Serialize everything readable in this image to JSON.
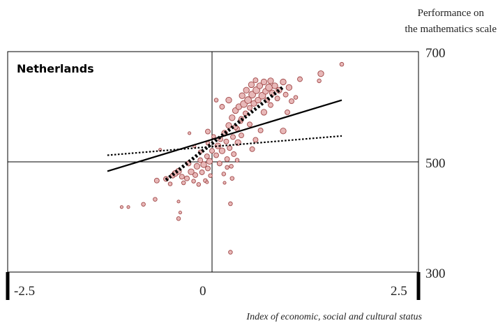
{
  "chart_data": {
    "type": "scatter",
    "title": "Netherlands",
    "ylabel": [
      "Performance on",
      "the mathematics scale"
    ],
    "xlabel": "Index of economic, social and cultural status",
    "xlim": [
      -2.5,
      2.5
    ],
    "ylim": [
      300,
      700
    ],
    "x_ticks": [
      "-2.5",
      "0",
      "2.5"
    ],
    "y_ticks": [
      "700",
      "500",
      "300"
    ],
    "reference_lines": {
      "x": 0,
      "y": 500
    },
    "points": [
      {
        "x": -1.08,
        "y": 418,
        "s": 3
      },
      {
        "x": -1.0,
        "y": 418,
        "s": 3
      },
      {
        "x": -0.82,
        "y": 423,
        "s": 4
      },
      {
        "x": -0.68,
        "y": 432,
        "s": 4
      },
      {
        "x": -0.66,
        "y": 466,
        "s": 5
      },
      {
        "x": -0.62,
        "y": 522,
        "s": 3
      },
      {
        "x": -0.55,
        "y": 469,
        "s": 5
      },
      {
        "x": -0.5,
        "y": 460,
        "s": 4
      },
      {
        "x": -0.47,
        "y": 475,
        "s": 5
      },
      {
        "x": -0.44,
        "y": 479,
        "s": 6
      },
      {
        "x": -0.4,
        "y": 483,
        "s": 6
      },
      {
        "x": -0.36,
        "y": 473,
        "s": 5
      },
      {
        "x": -0.34,
        "y": 462,
        "s": 4
      },
      {
        "x": -0.3,
        "y": 470,
        "s": 5
      },
      {
        "x": -0.28,
        "y": 497,
        "s": 5
      },
      {
        "x": -0.25,
        "y": 482,
        "s": 6
      },
      {
        "x": -0.22,
        "y": 465,
        "s": 4
      },
      {
        "x": -0.2,
        "y": 476,
        "s": 5
      },
      {
        "x": -0.18,
        "y": 492,
        "s": 6
      },
      {
        "x": -0.16,
        "y": 459,
        "s": 4
      },
      {
        "x": -0.14,
        "y": 503,
        "s": 5
      },
      {
        "x": -0.12,
        "y": 481,
        "s": 5
      },
      {
        "x": -0.1,
        "y": 495,
        "s": 6
      },
      {
        "x": -0.08,
        "y": 466,
        "s": 4
      },
      {
        "x": -0.06,
        "y": 510,
        "s": 5
      },
      {
        "x": -0.05,
        "y": 488,
        "s": 5
      },
      {
        "x": -0.03,
        "y": 501,
        "s": 6
      },
      {
        "x": -0.02,
        "y": 475,
        "s": 4
      },
      {
        "x": 0.0,
        "y": 520,
        "s": 5
      },
      {
        "x": -0.4,
        "y": 428,
        "s": 3
      },
      {
        "x": -0.38,
        "y": 408,
        "s": 3
      },
      {
        "x": -0.4,
        "y": 397,
        "s": 4
      },
      {
        "x": -0.27,
        "y": 552,
        "s": 3
      },
      {
        "x": -0.21,
        "y": 528,
        "s": 3
      },
      {
        "x": -0.14,
        "y": 518,
        "s": 4
      },
      {
        "x": -0.05,
        "y": 534,
        "s": 4
      },
      {
        "x": -0.05,
        "y": 555,
        "s": 5
      },
      {
        "x": 0.02,
        "y": 546,
        "s": 4
      },
      {
        "x": 0.05,
        "y": 512,
        "s": 5
      },
      {
        "x": 0.07,
        "y": 529,
        "s": 6
      },
      {
        "x": 0.09,
        "y": 497,
        "s": 5
      },
      {
        "x": 0.1,
        "y": 541,
        "s": 5
      },
      {
        "x": 0.12,
        "y": 520,
        "s": 6
      },
      {
        "x": 0.14,
        "y": 478,
        "s": 4
      },
      {
        "x": 0.15,
        "y": 552,
        "s": 6
      },
      {
        "x": 0.17,
        "y": 537,
        "s": 5
      },
      {
        "x": 0.18,
        "y": 505,
        "s": 5
      },
      {
        "x": 0.2,
        "y": 566,
        "s": 6
      },
      {
        "x": 0.21,
        "y": 525,
        "s": 5
      },
      {
        "x": 0.23,
        "y": 492,
        "s": 4
      },
      {
        "x": 0.24,
        "y": 580,
        "s": 6
      },
      {
        "x": 0.25,
        "y": 545,
        "s": 5
      },
      {
        "x": 0.26,
        "y": 514,
        "s": 5
      },
      {
        "x": 0.28,
        "y": 593,
        "s": 6
      },
      {
        "x": 0.3,
        "y": 560,
        "s": 5
      },
      {
        "x": 0.31,
        "y": 535,
        "s": 6
      },
      {
        "x": 0.32,
        "y": 600,
        "s": 6
      },
      {
        "x": 0.34,
        "y": 574,
        "s": 5
      },
      {
        "x": 0.35,
        "y": 548,
        "s": 5
      },
      {
        "x": 0.36,
        "y": 620,
        "s": 6
      },
      {
        "x": 0.38,
        "y": 605,
        "s": 7
      },
      {
        "x": 0.4,
        "y": 588,
        "s": 5
      },
      {
        "x": 0.41,
        "y": 630,
        "s": 6
      },
      {
        "x": 0.43,
        "y": 612,
        "s": 7
      },
      {
        "x": 0.45,
        "y": 598,
        "s": 5
      },
      {
        "x": 0.47,
        "y": 640,
        "s": 6
      },
      {
        "x": 0.48,
        "y": 622,
        "s": 7
      },
      {
        "x": 0.5,
        "y": 606,
        "s": 6
      },
      {
        "x": 0.52,
        "y": 648,
        "s": 5
      },
      {
        "x": 0.53,
        "y": 630,
        "s": 7
      },
      {
        "x": 0.55,
        "y": 612,
        "s": 6
      },
      {
        "x": 0.57,
        "y": 638,
        "s": 6
      },
      {
        "x": 0.6,
        "y": 620,
        "s": 7
      },
      {
        "x": 0.62,
        "y": 645,
        "s": 6
      },
      {
        "x": 0.64,
        "y": 628,
        "s": 6
      },
      {
        "x": 0.66,
        "y": 612,
        "s": 5
      },
      {
        "x": 0.68,
        "y": 635,
        "s": 7
      },
      {
        "x": 0.7,
        "y": 647,
        "s": 6
      },
      {
        "x": 0.72,
        "y": 625,
        "s": 6
      },
      {
        "x": 0.75,
        "y": 638,
        "s": 6
      },
      {
        "x": 0.78,
        "y": 615,
        "s": 5
      },
      {
        "x": 0.8,
        "y": 630,
        "s": 6
      },
      {
        "x": 0.85,
        "y": 645,
        "s": 6
      },
      {
        "x": 0.88,
        "y": 622,
        "s": 5
      },
      {
        "x": 0.92,
        "y": 635,
        "s": 6
      },
      {
        "x": 0.95,
        "y": 610,
        "s": 5
      },
      {
        "x": 1.0,
        "y": 617,
        "s": 4
      },
      {
        "x": 1.05,
        "y": 650,
        "s": 5
      },
      {
        "x": 1.3,
        "y": 660,
        "s": 6
      },
      {
        "x": 1.28,
        "y": 647,
        "s": 4
      },
      {
        "x": 1.55,
        "y": 677,
        "s": 4
      },
      {
        "x": 0.05,
        "y": 612,
        "s": 4
      },
      {
        "x": 0.12,
        "y": 600,
        "s": 5
      },
      {
        "x": 0.2,
        "y": 612,
        "s": 6
      },
      {
        "x": 0.28,
        "y": 563,
        "s": 5
      },
      {
        "x": 0.35,
        "y": 578,
        "s": 5
      },
      {
        "x": 0.45,
        "y": 568,
        "s": 5
      },
      {
        "x": 0.58,
        "y": 557,
        "s": 5
      },
      {
        "x": 0.62,
        "y": 590,
        "s": 6
      },
      {
        "x": 0.7,
        "y": 603,
        "s": 5
      },
      {
        "x": 0.85,
        "y": 556,
        "s": 6
      },
      {
        "x": 0.9,
        "y": 590,
        "s": 5
      },
      {
        "x": 0.52,
        "y": 540,
        "s": 5
      },
      {
        "x": 0.48,
        "y": 523,
        "s": 5
      },
      {
        "x": 0.3,
        "y": 503,
        "s": 4
      },
      {
        "x": 0.18,
        "y": 490,
        "s": 4
      },
      {
        "x": 0.24,
        "y": 470,
        "s": 4
      },
      {
        "x": 0.15,
        "y": 462,
        "s": 3
      },
      {
        "x": 0.22,
        "y": 424,
        "s": 4
      },
      {
        "x": 0.22,
        "y": 336,
        "s": 4
      },
      {
        "x": -0.06,
        "y": 463,
        "s": 3
      }
    ],
    "lines": [
      {
        "style": "solid",
        "x": [
          -1.25,
          1.55
        ],
        "y": [
          483,
          612
        ]
      },
      {
        "style": "dotted",
        "x": [
          -1.25,
          1.55
        ],
        "y": [
          512,
          547
        ]
      },
      {
        "style": "dashed-thick",
        "x": [
          -0.55,
          0.85
        ],
        "y": [
          467,
          636
        ]
      }
    ],
    "colors": {
      "point_fill": "#e8b8b8",
      "point_stroke": "#a04848",
      "line": "#000000"
    },
    "grid": false
  }
}
